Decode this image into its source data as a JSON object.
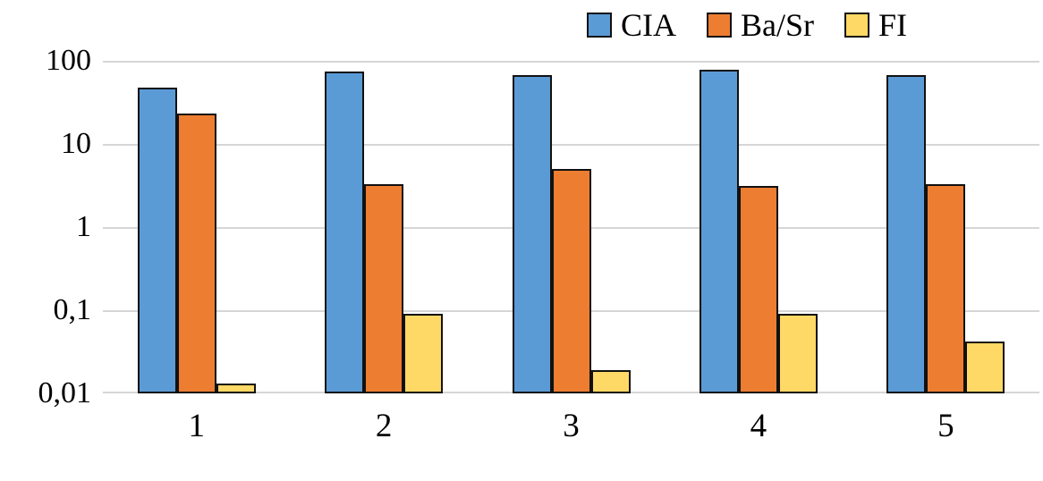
{
  "chart_data": {
    "type": "bar",
    "scale": "log",
    "title": "",
    "xlabel": "",
    "ylabel": "",
    "grid": true,
    "legend_position": "top",
    "ylim": [
      0.01,
      100
    ],
    "y_ticks": [
      {
        "label": "100",
        "value": 100
      },
      {
        "label": "10",
        "value": 10
      },
      {
        "label": "1",
        "value": 1
      },
      {
        "label": "0,1",
        "value": 0.1
      },
      {
        "label": "0,01",
        "value": 0.01
      }
    ],
    "categories": [
      "1",
      "2",
      "3",
      "4",
      "5"
    ],
    "series": [
      {
        "name": "CIA",
        "color": "#5B9BD5",
        "values": [
          48,
          75,
          68,
          78,
          68
        ]
      },
      {
        "name": "Ba/Sr",
        "color": "#ED7D31",
        "values": [
          23,
          3.3,
          5,
          3.1,
          3.3
        ]
      },
      {
        "name": "FI",
        "color": "#FFD966",
        "values": [
          0.013,
          0.09,
          0.019,
          0.09,
          0.042
        ]
      }
    ],
    "colors": {
      "bar_border": "#111111",
      "gridline": "#d6d6d6",
      "text": "#000000"
    }
  }
}
